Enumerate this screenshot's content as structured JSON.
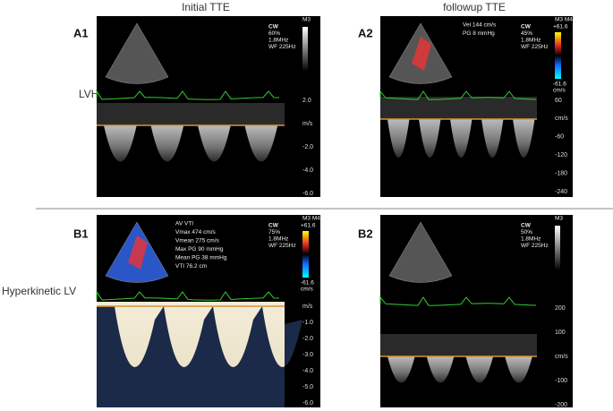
{
  "columns": [
    "Initial TTE",
    "followup TTE"
  ],
  "rows": [
    "LVH",
    "Hyperkinetic LV"
  ],
  "panels": [
    {
      "label": "A1",
      "mode": "M3",
      "settings": [
        "CW",
        "60%",
        "1.8MHz",
        "WF 225Hz"
      ],
      "scale": [
        "2.0",
        "m/s",
        "-2.0",
        "-4.0",
        "-6.0"
      ]
    },
    {
      "label": "A2",
      "mode": "M3 M4",
      "settings": [
        "CW",
        "45%",
        "1.8MHz",
        "WF 225Hz"
      ],
      "colorbar": [
        "+61.6",
        "-61.6",
        "cm/s"
      ],
      "measurements": [
        "Vel 144 cm/s",
        "PG 8 mmHg"
      ],
      "scale": [
        "60",
        "cm/s",
        "-60",
        "-120",
        "-180",
        "-240"
      ]
    },
    {
      "label": "B1",
      "mode": "M3 M4",
      "settings": [
        "CW",
        "75%",
        "1.8MHz",
        "WF 225Hz"
      ],
      "colorbar": [
        "+61.6",
        "-61.6",
        "cm/s"
      ],
      "measurements": [
        "AV VTI",
        "Vmax 474 cm/s",
        "Vmean 275 cm/s",
        "Max PG 90 mmHg",
        "Mean PG 38 mmHg",
        "VTI 76.2 cm"
      ],
      "scale": [
        "m/s",
        "-1.0",
        "-2.0",
        "-3.0",
        "-4.0",
        "-5.0",
        "-6.0"
      ]
    },
    {
      "label": "B2",
      "mode": "M3",
      "settings": [
        "CW",
        "50%",
        "1.8MHz",
        "WF 225Hz"
      ],
      "scale": [
        "200",
        "100",
        "cm/s",
        "-100",
        "-200"
      ]
    }
  ]
}
